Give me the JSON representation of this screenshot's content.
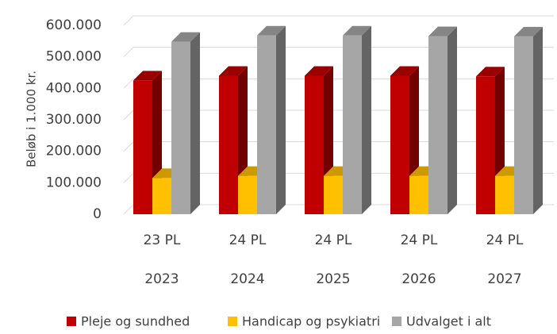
{
  "chart_data": {
    "type": "bar3d",
    "y_label": "Beløb i 1.000 kr.",
    "categories": [
      "23 PL",
      "24 PL",
      "24 PL",
      "24 PL",
      "24 PL"
    ],
    "category_groups": [
      "2023",
      "2024",
      "2025",
      "2026",
      "2027"
    ],
    "series": [
      {
        "name": "Pleje og sundhed",
        "color": "#c00000",
        "values": [
          425000,
          440000,
          440000,
          440000,
          438000
        ]
      },
      {
        "name": "Handicap og psykiatri",
        "color": "#ffc000",
        "values": [
          115000,
          122000,
          122000,
          122000,
          122000
        ]
      },
      {
        "name": "Udvalget i alt",
        "color": "#a6a6a6",
        "values": [
          548000,
          568000,
          568000,
          566000,
          565000
        ]
      }
    ],
    "ylim": [
      0,
      600000
    ],
    "yticks": [
      0,
      {
        "value": 100000,
        "label": "100.000"
      },
      {
        "value": 200000,
        "label": "200.000"
      },
      {
        "value": 300000,
        "label": "300.000"
      },
      {
        "value": 400000,
        "label": "400.000"
      },
      {
        "value": 500000,
        "label": "500.000"
      },
      {
        "value": 600000,
        "label": "600.000"
      }
    ],
    "grid": true,
    "legend": "bottom"
  }
}
